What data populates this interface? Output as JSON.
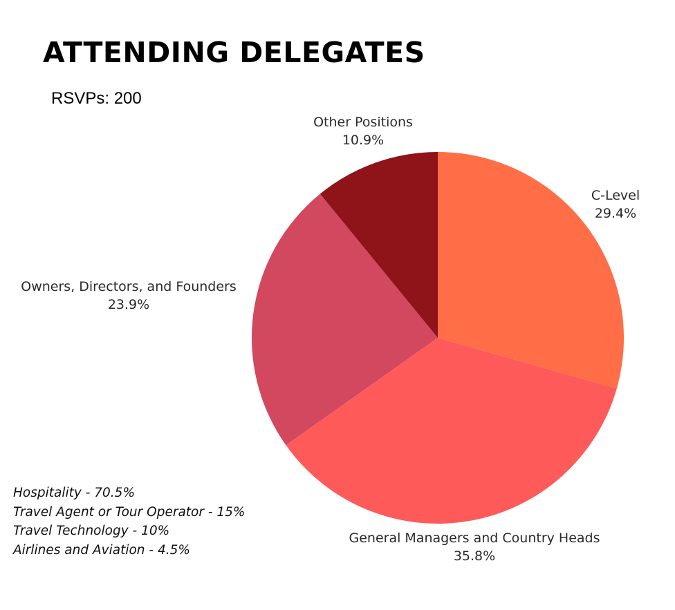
{
  "title": "ATTENDING DELEGATES",
  "rsvp_text": "RSVPs: 200",
  "industries": [
    "Hospitality - 70.5%",
    "Travel Agent or Tour Operator - 15%",
    "Travel Technology - 10%",
    "Airlines and Aviation - 4.5%"
  ],
  "chart_data": {
    "type": "pie",
    "title": "ATTENDING DELEGATES",
    "slices": [
      {
        "label": "C-Level",
        "value": 29.4,
        "value_label": "29.4%",
        "color": "#FF6E47"
      },
      {
        "label": "General Managers and Country Heads",
        "value": 35.8,
        "value_label": "35.8%",
        "color": "#FF5A5A"
      },
      {
        "label": "Owners, Directors, and Founders",
        "value": 23.9,
        "value_label": "23.9%",
        "color": "#D2485E"
      },
      {
        "label": "Other Positions",
        "value": 10.9,
        "value_label": "10.9%",
        "color": "#8E141A"
      }
    ],
    "start": "top",
    "direction": "clockwise",
    "legend": "none"
  }
}
